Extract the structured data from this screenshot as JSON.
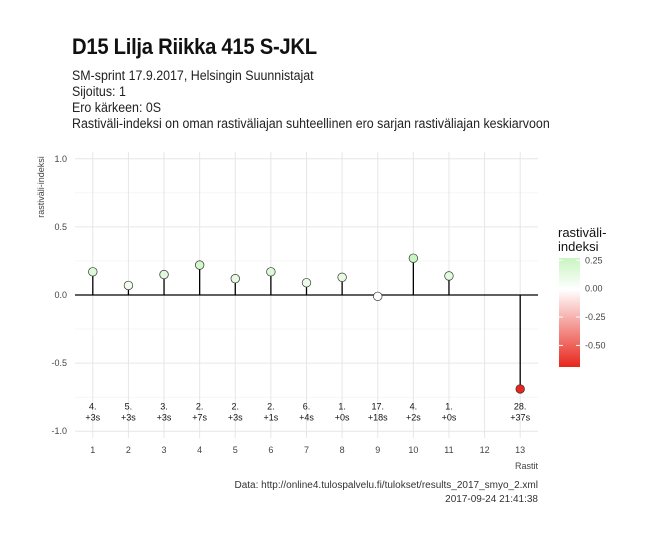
{
  "title": "D15 Lilja Riikka 415 S-JKL",
  "subtitle_lines": [
    "SM-sprint 17.9.2017, Helsingin Suunnistajat",
    "Sijoitus: 1",
    "Ero kärkeen: 0S",
    "Rastiväli-indeksi on oman rastiväliajan suhteellinen ero sarjan rastiväliajan keskiarvoon"
  ],
  "caption_lines": [
    "Data: http://online4.tulospalvelu.fi/tulokset/results_2017_smyo_2.xml",
    "2017-09-24 21:41:38"
  ],
  "colors": {
    "positive": "#c8f5c0",
    "neutral": "#ffffff",
    "negative": "#e8261c",
    "grid": "#e6e6e6"
  },
  "chart_data": {
    "type": "scatter",
    "style": "lollipop",
    "xlabel": "Rastit",
    "ylabel": "rastiväli-indeksi",
    "xlim": [
      0.5,
      13.5
    ],
    "ylim": [
      -1.05,
      1.05
    ],
    "x_ticks": [
      1,
      2,
      3,
      4,
      5,
      6,
      7,
      8,
      9,
      10,
      11,
      12,
      13
    ],
    "y_ticks": [
      -1.0,
      -0.5,
      0.0,
      0.5,
      1.0
    ],
    "y_tick_labels": [
      "-1.0",
      "-0.5",
      "0.0",
      "0.5",
      "1.0"
    ],
    "grid": true,
    "points": [
      {
        "x": 1,
        "y": 0.17,
        "rank": "4.",
        "diff": "+3s"
      },
      {
        "x": 2,
        "y": 0.07,
        "rank": "5.",
        "diff": "+3s"
      },
      {
        "x": 3,
        "y": 0.15,
        "rank": "3.",
        "diff": "+3s"
      },
      {
        "x": 4,
        "y": 0.22,
        "rank": "2.",
        "diff": "+7s"
      },
      {
        "x": 5,
        "y": 0.12,
        "rank": "2.",
        "diff": "+3s"
      },
      {
        "x": 6,
        "y": 0.17,
        "rank": "2.",
        "diff": "+1s"
      },
      {
        "x": 7,
        "y": 0.09,
        "rank": "6.",
        "diff": "+4s"
      },
      {
        "x": 8,
        "y": 0.13,
        "rank": "1.",
        "diff": "+0s"
      },
      {
        "x": 9,
        "y": -0.01,
        "rank": "17.",
        "diff": "+18s"
      },
      {
        "x": 10,
        "y": 0.27,
        "rank": "4.",
        "diff": "+2s"
      },
      {
        "x": 11,
        "y": 0.14,
        "rank": "1.",
        "diff": "+0s"
      },
      {
        "x": 13,
        "y": -0.69,
        "rank": "28.",
        "diff": "+37s"
      }
    ],
    "legend": {
      "title_lines": [
        "rastiväli-",
        "indeksi"
      ],
      "ticks": [
        0.25,
        0.0,
        -0.25,
        -0.5
      ],
      "tick_labels": [
        "0.25",
        "0.00",
        "-0.25",
        "-0.50"
      ],
      "range": [
        -0.69,
        0.27
      ],
      "placement": "right"
    }
  }
}
